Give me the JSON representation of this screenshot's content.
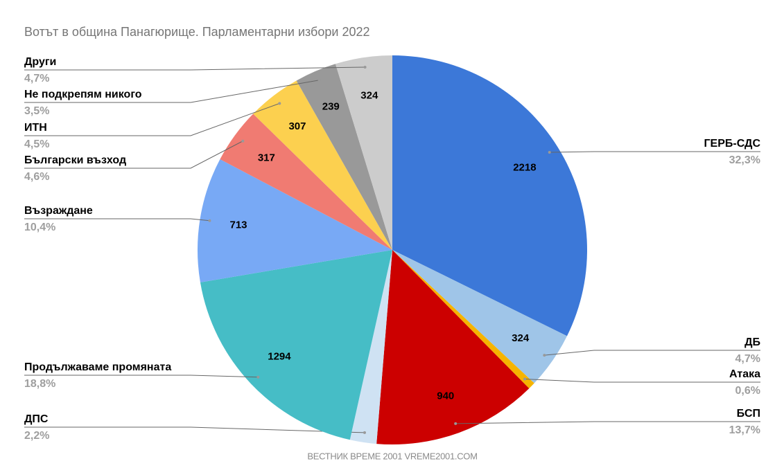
{
  "chart_data": {
    "type": "pie",
    "title": "Вотът в община Панагюрище. Парламентарни избори 2022",
    "source": "ВЕСТНИК ВРЕМЕ 2001  VREME2001.COM",
    "categories": [
      "ГЕРБ-СДС",
      "ДБ",
      "Атака",
      "БСП",
      "ДПС",
      "Продължаваме промяната",
      "Възраждане",
      "Български възход",
      "ИТН",
      "Не подкрепям никого",
      "Други"
    ],
    "values": [
      2218,
      324,
      41,
      940,
      151,
      1294,
      713,
      317,
      307,
      239,
      324
    ],
    "percent_labels": [
      "32,3%",
      "4,7%",
      "0,6%",
      "13,7%",
      "2,2%",
      "18,8%",
      "10,4%",
      "4,6%",
      "4,5%",
      "3,5%",
      "4,7%"
    ],
    "colors": [
      "#3c78d8",
      "#9fc5e8",
      "#f6b400",
      "#cc0000",
      "#cfe2f3",
      "#46bdc6",
      "#78a9f5",
      "#f07b72",
      "#fcd04f",
      "#999999",
      "#cccccc"
    ]
  }
}
